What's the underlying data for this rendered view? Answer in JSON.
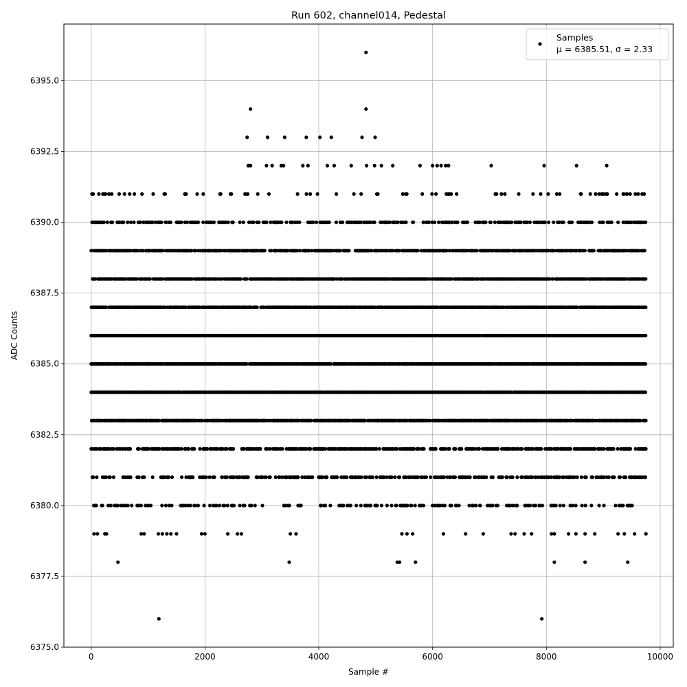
{
  "chart_data": {
    "type": "scatter",
    "title": "Run 602, channel014, Pedestal",
    "xlabel": "Sample #",
    "ylabel": "ADC Counts",
    "xlim": [
      -480,
      10230
    ],
    "ylim": [
      6375.0,
      6397.0
    ],
    "xticks": [
      0,
      2000,
      4000,
      6000,
      8000,
      10000
    ],
    "yticks": [
      6375.0,
      6377.5,
      6380.0,
      6382.5,
      6385.0,
      6387.5,
      6390.0,
      6392.5,
      6395.0
    ],
    "xtick_labels": [
      "0",
      "2000",
      "4000",
      "6000",
      "8000",
      "10000"
    ],
    "ytick_labels": [
      "6375.0",
      "6377.5",
      "6380.0",
      "6382.5",
      "6385.0",
      "6387.5",
      "6390.0",
      "6392.5",
      "6395.0"
    ],
    "grid": true,
    "legend": {
      "placement": "top-right",
      "entries": [
        {
          "label": "Samples",
          "stats": "μ = 6385.51, σ = 2.33"
        }
      ]
    },
    "series": [
      {
        "name": "Samples",
        "color": "#000000",
        "x_range": [
          0,
          9750
        ],
        "level_densities": [
          {
            "y": 6384,
            "density": 0.95
          },
          {
            "y": 6385,
            "density": 0.95
          },
          {
            "y": 6386,
            "density": 0.95
          },
          {
            "y": 6387,
            "density": 0.85
          },
          {
            "y": 6383,
            "density": 0.75
          },
          {
            "y": 6388,
            "density": 0.75
          },
          {
            "y": 6389,
            "density": 0.6
          },
          {
            "y": 6382,
            "density": 0.45
          },
          {
            "y": 6390,
            "density": 0.35
          },
          {
            "y": 6381,
            "density": 0.3
          },
          {
            "y": 6380,
            "density": 0.2
          },
          {
            "y": 6391,
            "density": 0.1
          }
        ],
        "sparse_points": [
          {
            "x": 2800,
            "y": 6394
          },
          {
            "x": 4830,
            "y": 6394
          },
          {
            "x": 4830,
            "y": 6396
          },
          {
            "x": 2740,
            "y": 6393
          },
          {
            "x": 3100,
            "y": 6393
          },
          {
            "x": 3400,
            "y": 6393
          },
          {
            "x": 3780,
            "y": 6393
          },
          {
            "x": 4020,
            "y": 6393
          },
          {
            "x": 4220,
            "y": 6393
          },
          {
            "x": 4760,
            "y": 6393
          },
          {
            "x": 4990,
            "y": 6393
          },
          {
            "x": 2760,
            "y": 6392
          },
          {
            "x": 2800,
            "y": 6392
          },
          {
            "x": 3080,
            "y": 6392
          },
          {
            "x": 3180,
            "y": 6392
          },
          {
            "x": 3340,
            "y": 6392
          },
          {
            "x": 3380,
            "y": 6392
          },
          {
            "x": 3720,
            "y": 6392
          },
          {
            "x": 3810,
            "y": 6392
          },
          {
            "x": 4150,
            "y": 6392
          },
          {
            "x": 4270,
            "y": 6392
          },
          {
            "x": 4570,
            "y": 6392
          },
          {
            "x": 4840,
            "y": 6392
          },
          {
            "x": 4980,
            "y": 6392
          },
          {
            "x": 5100,
            "y": 6392
          },
          {
            "x": 5300,
            "y": 6392
          },
          {
            "x": 5780,
            "y": 6392
          },
          {
            "x": 6000,
            "y": 6392
          },
          {
            "x": 6080,
            "y": 6392
          },
          {
            "x": 6150,
            "y": 6392
          },
          {
            "x": 6230,
            "y": 6392
          },
          {
            "x": 6280,
            "y": 6392
          },
          {
            "x": 7030,
            "y": 6392
          },
          {
            "x": 7960,
            "y": 6392
          },
          {
            "x": 8530,
            "y": 6392
          },
          {
            "x": 9060,
            "y": 6392
          },
          {
            "x": 50,
            "y": 6379
          },
          {
            "x": 110,
            "y": 6379
          },
          {
            "x": 240,
            "y": 6379
          },
          {
            "x": 270,
            "y": 6379
          },
          {
            "x": 880,
            "y": 6379
          },
          {
            "x": 930,
            "y": 6379
          },
          {
            "x": 1180,
            "y": 6379
          },
          {
            "x": 1250,
            "y": 6379
          },
          {
            "x": 1330,
            "y": 6379
          },
          {
            "x": 1400,
            "y": 6379
          },
          {
            "x": 1500,
            "y": 6379
          },
          {
            "x": 1940,
            "y": 6379
          },
          {
            "x": 2000,
            "y": 6379
          },
          {
            "x": 2400,
            "y": 6379
          },
          {
            "x": 2570,
            "y": 6379
          },
          {
            "x": 2640,
            "y": 6379
          },
          {
            "x": 3500,
            "y": 6379
          },
          {
            "x": 3600,
            "y": 6379
          },
          {
            "x": 5460,
            "y": 6379
          },
          {
            "x": 5550,
            "y": 6379
          },
          {
            "x": 5650,
            "y": 6379
          },
          {
            "x": 6190,
            "y": 6379
          },
          {
            "x": 6580,
            "y": 6379
          },
          {
            "x": 6890,
            "y": 6379
          },
          {
            "x": 7380,
            "y": 6379
          },
          {
            "x": 7450,
            "y": 6379
          },
          {
            "x": 7610,
            "y": 6379
          },
          {
            "x": 7740,
            "y": 6379
          },
          {
            "x": 8090,
            "y": 6379
          },
          {
            "x": 8140,
            "y": 6379
          },
          {
            "x": 8390,
            "y": 6379
          },
          {
            "x": 8520,
            "y": 6379
          },
          {
            "x": 8680,
            "y": 6379
          },
          {
            "x": 8850,
            "y": 6379
          },
          {
            "x": 9260,
            "y": 6379
          },
          {
            "x": 9370,
            "y": 6379
          },
          {
            "x": 9550,
            "y": 6379
          },
          {
            "x": 9750,
            "y": 6379
          },
          {
            "x": 470,
            "y": 6378
          },
          {
            "x": 3480,
            "y": 6378
          },
          {
            "x": 5380,
            "y": 6378
          },
          {
            "x": 5420,
            "y": 6378
          },
          {
            "x": 5700,
            "y": 6378
          },
          {
            "x": 8140,
            "y": 6378
          },
          {
            "x": 8680,
            "y": 6378
          },
          {
            "x": 9430,
            "y": 6378
          },
          {
            "x": 1190,
            "y": 6376
          },
          {
            "x": 7920,
            "y": 6376
          }
        ]
      }
    ]
  }
}
